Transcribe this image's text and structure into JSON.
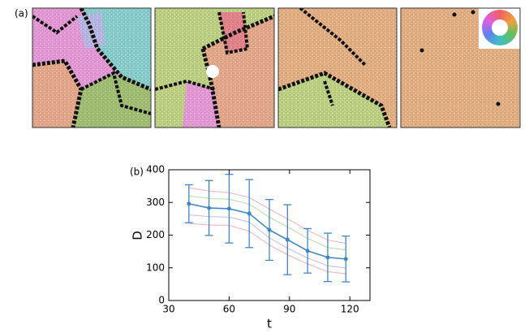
{
  "panel_a_label": "(a)",
  "chart_data": {
    "type": "line",
    "panel_label": "(b)",
    "x_label": "t",
    "y_label": "D",
    "x": [
      40,
      50,
      60,
      70,
      80,
      89,
      99,
      109,
      118
    ],
    "xlim": [
      30,
      130
    ],
    "xticks": [
      30,
      60,
      90,
      120
    ],
    "ylim": [
      0,
      400
    ],
    "yticks": [
      0,
      100,
      200,
      300,
      400
    ],
    "series": [
      {
        "color": "#f4b8c4",
        "values": [
          345,
          335,
          330,
          315,
          280,
          250,
          215,
          185,
          175
        ]
      },
      {
        "color": "#bfe0b0",
        "values": [
          320,
          312,
          310,
          295,
          255,
          225,
          190,
          162,
          155
        ]
      },
      {
        "color": "#c8c4ec",
        "values": [
          262,
          257,
          255,
          240,
          192,
          160,
          130,
          106,
          100
        ]
      },
      {
        "color": "#f4b8c4",
        "values": [
          236,
          231,
          230,
          212,
          170,
          140,
          112,
          88,
          82
        ]
      },
      {
        "color": "#3f87c4",
        "values": [
          296,
          283,
          281,
          266,
          216,
          186,
          152,
          132,
          127
        ],
        "errors": [
          58,
          84,
          105,
          104,
          93,
          107,
          68,
          74,
          70
        ]
      }
    ]
  }
}
